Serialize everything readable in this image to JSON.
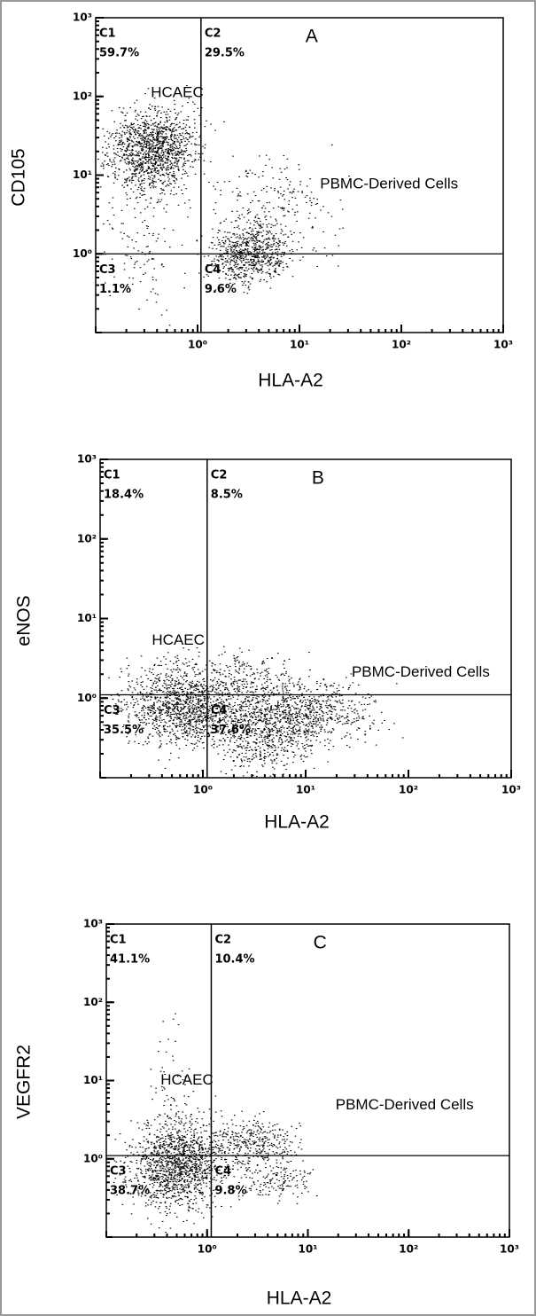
{
  "chart_data": [
    {
      "type": "scatter",
      "panel": "A",
      "x_label": "HLA-A2",
      "y_label": "CD105",
      "log_scale": true,
      "xlim": [
        0.1,
        1000
      ],
      "ylim": [
        0.1,
        1000
      ],
      "xticks": [
        {
          "value": 1,
          "label": "10⁰"
        },
        {
          "value": 10,
          "label": "10¹"
        },
        {
          "value": 100,
          "label": "10²"
        },
        {
          "value": 1000,
          "label": "10³"
        }
      ],
      "yticks": [
        {
          "value": 1,
          "label": "10⁰"
        },
        {
          "value": 10,
          "label": "10¹"
        },
        {
          "value": 100,
          "label": "10²"
        },
        {
          "value": 1000,
          "label": "10³"
        }
      ],
      "gate": {
        "x": 1.08,
        "y": 1.0
      },
      "quadrants": [
        "C1",
        "C2",
        "C3",
        "C4"
      ],
      "values": [
        59.7,
        29.5,
        1.1,
        9.6
      ],
      "value_labels": [
        "59.7%",
        "29.5%",
        "1.1%",
        "9.6%"
      ],
      "annotations": [
        "HCAEC",
        "PBMC-Derived Cells"
      ]
    },
    {
      "type": "scatter",
      "panel": "B",
      "x_label": "HLA-A2",
      "y_label": "eNOS",
      "log_scale": true,
      "xlim": [
        0.1,
        1000
      ],
      "ylim": [
        0.1,
        1000
      ],
      "xticks": [
        {
          "value": 1,
          "label": "10⁰"
        },
        {
          "value": 10,
          "label": "10¹"
        },
        {
          "value": 100,
          "label": "10²"
        },
        {
          "value": 1000,
          "label": "10³"
        }
      ],
      "yticks": [
        {
          "value": 1,
          "label": "10⁰"
        },
        {
          "value": 10,
          "label": "10¹"
        },
        {
          "value": 100,
          "label": "10²"
        },
        {
          "value": 1000,
          "label": "10³"
        }
      ],
      "gate": {
        "x": 1.1,
        "y": 1.1
      },
      "quadrants": [
        "C1",
        "C2",
        "C3",
        "C4"
      ],
      "values": [
        18.4,
        8.5,
        35.5,
        37.6
      ],
      "value_labels": [
        "18.4%",
        "8.5%",
        "35.5%",
        "37.6%"
      ],
      "annotations": [
        "HCAEC",
        "PBMC-Derived Cells"
      ]
    },
    {
      "type": "scatter",
      "panel": "C",
      "x_label": "HLA-A2",
      "y_label": "VEGFR2",
      "log_scale": true,
      "xlim": [
        0.1,
        1000
      ],
      "ylim": [
        0.1,
        1000
      ],
      "xticks": [
        {
          "value": 1,
          "label": "10⁰"
        },
        {
          "value": 10,
          "label": "10¹"
        },
        {
          "value": 100,
          "label": "10²"
        },
        {
          "value": 1000,
          "label": "10³"
        }
      ],
      "yticks": [
        {
          "value": 1,
          "label": "10⁰"
        },
        {
          "value": 10,
          "label": "10¹"
        },
        {
          "value": 100,
          "label": "10²"
        },
        {
          "value": 1000,
          "label": "10³"
        }
      ],
      "gate": {
        "x": 1.1,
        "y": 1.1
      },
      "quadrants": [
        "C1",
        "C2",
        "C3",
        "C4"
      ],
      "values": [
        41.1,
        10.4,
        38.7,
        9.8
      ],
      "value_labels": [
        "41.1%",
        "10.4%",
        "38.7%",
        "9.8%"
      ],
      "annotations": [
        "HCAEC",
        "PBMC-Derived Cells"
      ]
    }
  ]
}
